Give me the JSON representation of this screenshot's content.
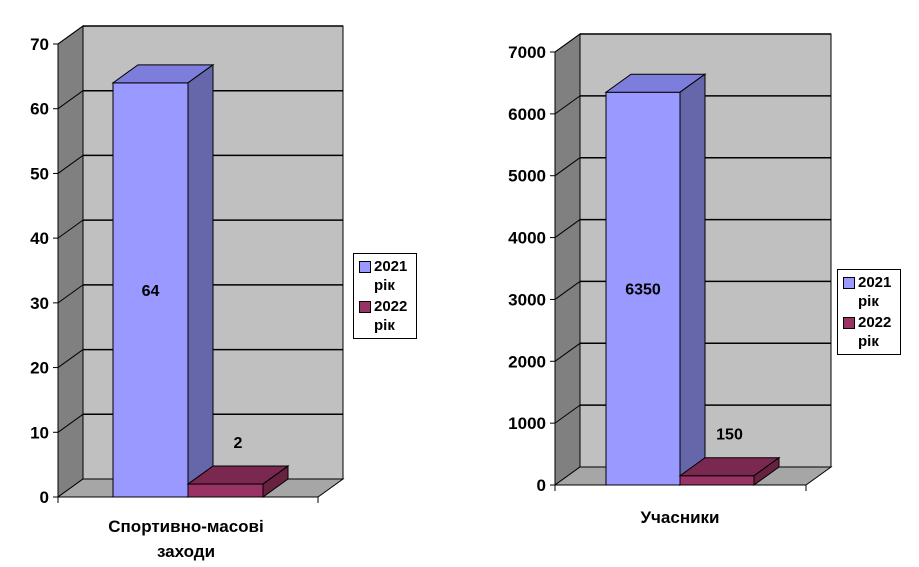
{
  "chart_data": [
    {
      "type": "bar",
      "categories": [
        "Спортивно-масові заходи"
      ],
      "series": [
        {
          "name": "2021 рік",
          "values": [
            64
          ]
        },
        {
          "name": "2022 рік",
          "values": [
            2
          ]
        }
      ],
      "ylim": [
        0,
        70
      ],
      "yticks": [
        "0",
        "10",
        "20",
        "30",
        "40",
        "50",
        "60",
        "70"
      ],
      "grid": true,
      "legend_position": "right",
      "colors": [
        "#9999ff",
        "#993366"
      ]
    },
    {
      "type": "bar",
      "categories": [
        "Учасники"
      ],
      "series": [
        {
          "name": "2021 рік",
          "values": [
            6350
          ]
        },
        {
          "name": "2022 рік",
          "values": [
            150
          ]
        }
      ],
      "ylim": [
        0,
        7000
      ],
      "yticks": [
        "0",
        "1000",
        "2000",
        "3000",
        "4000",
        "5000",
        "6000",
        "7000"
      ],
      "grid": true,
      "legend_position": "right",
      "colors": [
        "#9999ff",
        "#993366"
      ]
    }
  ]
}
